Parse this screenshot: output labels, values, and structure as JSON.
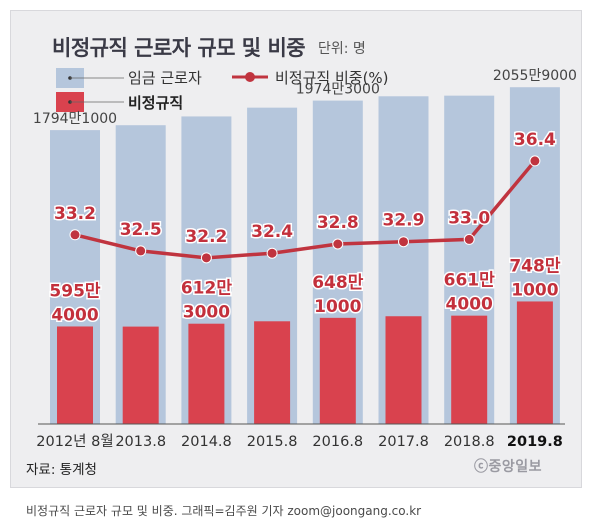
{
  "title": "비정규직 근로자 규모 및 비중",
  "unit_label": "단위: 명",
  "source": "자료: 통계청",
  "brand": "ⓒ중앙일보",
  "credit": "비정규직 근로자 규모 및 비중. 그래픽=김주원 기자 zoom@joongang.co.kr",
  "legend": {
    "total_label": "임금 근로자",
    "irregular_label": "비정규직",
    "ratio_label": "비정규직 비중(%)"
  },
  "colors": {
    "total_bar": "#b5c6dc",
    "irregular_bar": "#d9424e",
    "ratio_line": "#c0343f",
    "value_text": "#c3303c",
    "plot_bg": "#eeeef0"
  },
  "chart_data": {
    "type": "bar",
    "categories": [
      "2012년 8월",
      "2013.8",
      "2014.8",
      "2015.8",
      "2016.8",
      "2017.8",
      "2018.8",
      "2019.8"
    ],
    "highlight_category": "2019.8",
    "series": [
      {
        "name": "임금 근로자",
        "type": "bar",
        "values": [
          17941000,
          18240000,
          18776000,
          19312000,
          19743000,
          20006000,
          20045000,
          20559000
        ],
        "labels": [
          "1794만1000",
          "",
          "",
          "",
          "1974만3000",
          "",
          "",
          "2055만9000"
        ]
      },
      {
        "name": "비정규직",
        "type": "bar",
        "values": [
          5954000,
          5946000,
          6123000,
          6270000,
          6481000,
          6578000,
          6614000,
          7481000
        ],
        "labels": [
          [
            "595만",
            "4000"
          ],
          null,
          [
            "612만",
            "3000"
          ],
          null,
          [
            "648만",
            "1000"
          ],
          null,
          [
            "661만",
            "4000"
          ],
          [
            "748만",
            "1000"
          ]
        ]
      },
      {
        "name": "비정규직 비중(%)",
        "type": "line",
        "values": [
          33.2,
          32.5,
          32.2,
          32.4,
          32.8,
          32.9,
          33.0,
          36.4
        ],
        "labels": [
          "33.2",
          "32.5",
          "32.2",
          "32.4",
          "32.8",
          "32.9",
          "33.0",
          "36.4"
        ]
      }
    ],
    "ylim_bars": [
      0,
      21000000
    ],
    "ylim_ratio": [
      25,
      38
    ],
    "grid": false,
    "legend_position": "top-left"
  }
}
